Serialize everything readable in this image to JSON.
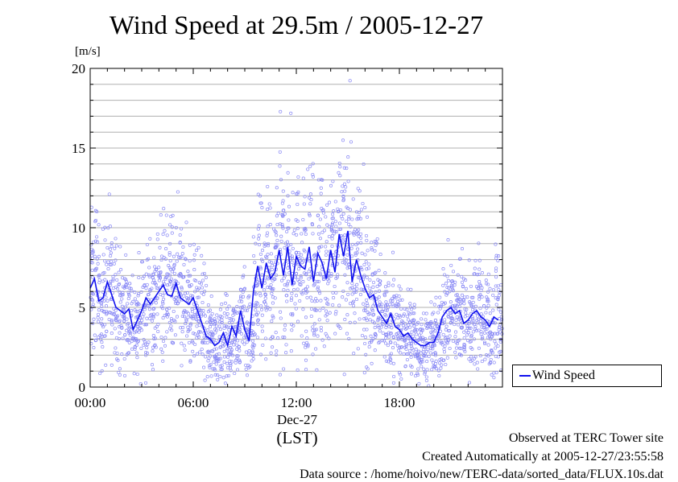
{
  "chart_data": {
    "type": "line",
    "title": "Wind Speed at 29.5m / 2005-12-27",
    "ylabel": "[m/s]",
    "xlabel": "(LST)",
    "x_date_label": "Dec-27",
    "ylim": [
      0,
      20
    ],
    "y_ticks": [
      "0",
      "5",
      "10",
      "15",
      "20"
    ],
    "x_ticks": [
      "00:00",
      "06:00",
      "12:00",
      "18:00"
    ],
    "x_tick_hours": [
      0,
      6,
      12,
      18
    ],
    "xlim_hours": [
      0,
      24
    ],
    "grid": true,
    "legend_position": "right",
    "series": [
      {
        "name": "Wind Speed",
        "color": "#1010ee",
        "marker_color": "#8a8af5",
        "x": [
          0.0,
          0.25,
          0.5,
          0.75,
          1.0,
          1.25,
          1.5,
          1.75,
          2.0,
          2.25,
          2.5,
          2.75,
          3.0,
          3.25,
          3.5,
          3.75,
          4.0,
          4.25,
          4.5,
          4.75,
          5.0,
          5.25,
          5.5,
          5.75,
          6.0,
          6.25,
          6.5,
          6.75,
          7.0,
          7.25,
          7.5,
          7.75,
          8.0,
          8.25,
          8.5,
          8.75,
          9.0,
          9.25,
          9.5,
          9.75,
          10.0,
          10.25,
          10.5,
          10.75,
          11.0,
          11.25,
          11.5,
          11.75,
          12.0,
          12.25,
          12.5,
          12.75,
          13.0,
          13.25,
          13.5,
          13.75,
          14.0,
          14.25,
          14.5,
          14.75,
          15.0,
          15.25,
          15.5,
          15.75,
          16.0,
          16.25,
          16.5,
          16.75,
          17.0,
          17.25,
          17.5,
          17.75,
          18.0,
          18.25,
          18.5,
          18.75,
          19.0,
          19.25,
          19.5,
          19.75,
          20.0,
          20.25,
          20.5,
          20.75,
          21.0,
          21.25,
          21.5,
          21.75,
          22.0,
          22.25,
          22.5,
          22.75,
          23.0,
          23.25,
          23.5,
          23.75
        ],
        "values": [
          6.2,
          6.8,
          5.4,
          5.6,
          6.6,
          5.8,
          5.0,
          4.8,
          4.6,
          4.9,
          3.6,
          4.2,
          4.8,
          5.6,
          5.2,
          5.6,
          6.0,
          6.4,
          5.8,
          5.7,
          6.5,
          5.6,
          5.4,
          5.2,
          5.6,
          4.8,
          4.0,
          3.2,
          3.0,
          2.6,
          2.8,
          3.4,
          2.6,
          3.8,
          3.2,
          4.8,
          3.6,
          2.9,
          6.0,
          7.6,
          6.2,
          7.8,
          6.8,
          7.2,
          8.6,
          7.0,
          8.8,
          6.4,
          8.2,
          7.6,
          7.4,
          8.8,
          6.6,
          8.4,
          7.8,
          6.8,
          8.6,
          7.2,
          9.6,
          8.2,
          9.8,
          6.6,
          8.0,
          7.0,
          6.2,
          5.6,
          5.8,
          4.8,
          4.4,
          4.0,
          4.6,
          3.8,
          3.6,
          3.2,
          3.4,
          3.0,
          2.8,
          2.6,
          2.6,
          2.8,
          2.8,
          3.4,
          4.4,
          4.8,
          5.0,
          4.6,
          4.8,
          4.0,
          4.2,
          4.6,
          4.8,
          4.4,
          4.2,
          3.8,
          4.4,
          4.2
        ]
      }
    ]
  },
  "footer": {
    "observed": "Observed at TERC Tower site",
    "created": "Created Automatically at 2005-12-27/23:55:58",
    "source": "Data source : /home/hoivo/new/TERC-data/sorted_data/FLUX.10s.dat"
  }
}
